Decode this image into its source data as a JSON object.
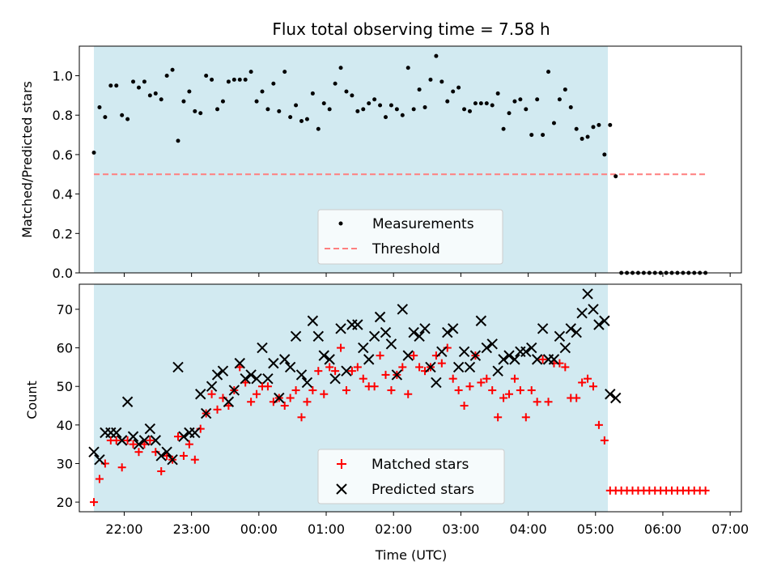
{
  "colors": {
    "span": "#add8e6",
    "measurement": "#000000",
    "threshold": "#ff7f7f",
    "matched": "#ff0000",
    "predicted": "#000000"
  },
  "chart_data": [
    {
      "type": "scatter",
      "title": "Flux total observing time = 7.58 h",
      "xlabel": "",
      "ylabel": "Matched/Predicted stars",
      "xlim": [
        "21:20",
        "07:10"
      ],
      "ylim": [
        0,
        1.15
      ],
      "yticks": [
        "0.0",
        "0.2",
        "0.4",
        "0.6",
        "0.8",
        "1.0"
      ],
      "observing_span": [
        "21:33",
        "05:11"
      ],
      "legend_position": "lower center",
      "threshold": {
        "name": "Threshold",
        "value": 0.5,
        "x": [
          "21:33",
          "06:40"
        ]
      },
      "series": [
        {
          "name": "Measurements",
          "x": [
            "21:33",
            "21:38",
            "21:43",
            "21:48",
            "21:53",
            "21:58",
            "22:03",
            "22:08",
            "22:13",
            "22:18",
            "22:23",
            "22:28",
            "22:33",
            "22:38",
            "22:43",
            "22:48",
            "22:53",
            "22:58",
            "23:03",
            "23:08",
            "23:13",
            "23:18",
            "23:23",
            "23:28",
            "23:33",
            "23:38",
            "23:43",
            "23:48",
            "23:53",
            "23:58",
            "00:03",
            "00:08",
            "00:13",
            "00:18",
            "00:23",
            "00:28",
            "00:33",
            "00:38",
            "00:43",
            "00:48",
            "00:53",
            "00:58",
            "01:03",
            "01:08",
            "01:13",
            "01:18",
            "01:23",
            "01:28",
            "01:33",
            "01:38",
            "01:43",
            "01:48",
            "01:53",
            "01:58",
            "02:03",
            "02:08",
            "02:13",
            "02:18",
            "02:23",
            "02:28",
            "02:33",
            "02:38",
            "02:43",
            "02:48",
            "02:53",
            "02:58",
            "03:03",
            "03:08",
            "03:13",
            "03:18",
            "03:23",
            "03:28",
            "03:33",
            "03:38",
            "03:43",
            "03:48",
            "03:53",
            "03:58",
            "04:03",
            "04:08",
            "04:13",
            "04:18",
            "04:23",
            "04:28",
            "04:33",
            "04:38",
            "04:43",
            "04:48",
            "04:53",
            "04:58",
            "05:03",
            "05:08",
            "05:13",
            "05:18",
            "05:23",
            "05:28",
            "05:33",
            "05:38",
            "05:43",
            "05:48",
            "05:53",
            "05:58",
            "06:03",
            "06:08",
            "06:13",
            "06:18",
            "06:23",
            "06:28",
            "06:33",
            "06:38"
          ],
          "y": [
            0.61,
            0.84,
            0.79,
            0.95,
            0.95,
            0.8,
            0.78,
            0.97,
            0.94,
            0.97,
            0.9,
            0.91,
            0.88,
            1.0,
            1.03,
            0.67,
            0.87,
            0.92,
            0.82,
            0.81,
            1.0,
            0.98,
            0.83,
            0.87,
            0.97,
            0.98,
            0.98,
            0.98,
            1.02,
            0.87,
            0.92,
            0.83,
            0.96,
            0.82,
            1.02,
            0.79,
            0.85,
            0.77,
            0.78,
            0.91,
            0.73,
            0.86,
            0.83,
            0.96,
            1.04,
            0.92,
            0.9,
            0.82,
            0.83,
            0.86,
            0.88,
            0.85,
            0.79,
            0.85,
            0.83,
            0.8,
            1.04,
            0.83,
            0.93,
            0.84,
            0.98,
            1.1,
            0.97,
            0.87,
            0.92,
            0.94,
            0.83,
            0.82,
            0.86,
            0.86,
            0.86,
            0.85,
            0.91,
            0.73,
            0.81,
            0.87,
            0.88,
            0.83,
            0.7,
            0.88,
            0.7,
            1.02,
            0.76,
            0.88,
            0.93,
            0.84,
            0.73,
            0.68,
            0.69,
            0.74,
            0.75,
            0.6,
            0.75,
            0.49,
            0,
            0,
            0,
            0,
            0,
            0,
            0,
            0,
            0,
            0,
            0,
            0,
            0,
            0,
            0,
            0
          ]
        }
      ]
    },
    {
      "type": "scatter",
      "title": "",
      "xlabel": "Time (UTC)",
      "ylabel": "Count",
      "xlim": [
        "21:20",
        "07:10"
      ],
      "ylim": [
        17.5,
        76.5
      ],
      "yticks": [
        "20",
        "30",
        "40",
        "50",
        "60",
        "70"
      ],
      "xticks": [
        "22:00",
        "23:00",
        "00:00",
        "01:00",
        "02:00",
        "03:00",
        "04:00",
        "05:00",
        "06:00",
        "07:00"
      ],
      "observing_span": [
        "21:33",
        "05:11"
      ],
      "legend_position": "lower center",
      "series": [
        {
          "name": "Matched stars",
          "marker": "plus",
          "x": [
            "21:33",
            "21:38",
            "21:43",
            "21:48",
            "21:53",
            "21:58",
            "22:03",
            "22:08",
            "22:13",
            "22:18",
            "22:23",
            "22:28",
            "22:33",
            "22:38",
            "22:43",
            "22:48",
            "22:53",
            "22:58",
            "23:03",
            "23:08",
            "23:13",
            "23:18",
            "23:23",
            "23:28",
            "23:33",
            "23:38",
            "23:43",
            "23:48",
            "23:53",
            "23:58",
            "00:03",
            "00:08",
            "00:13",
            "00:18",
            "00:23",
            "00:28",
            "00:33",
            "00:38",
            "00:43",
            "00:48",
            "00:53",
            "00:58",
            "01:03",
            "01:08",
            "01:13",
            "01:18",
            "01:23",
            "01:28",
            "01:33",
            "01:38",
            "01:43",
            "01:48",
            "01:53",
            "01:58",
            "02:03",
            "02:08",
            "02:13",
            "02:18",
            "02:23",
            "02:28",
            "02:33",
            "02:38",
            "02:43",
            "02:48",
            "02:53",
            "02:58",
            "03:03",
            "03:08",
            "03:13",
            "03:18",
            "03:23",
            "03:28",
            "03:33",
            "03:38",
            "03:43",
            "03:48",
            "03:53",
            "03:58",
            "04:03",
            "04:08",
            "04:13",
            "04:18",
            "04:23",
            "04:28",
            "04:33",
            "04:38",
            "04:43",
            "04:48",
            "04:53",
            "04:58",
            "05:03",
            "05:08",
            "05:13",
            "05:18",
            "05:23",
            "05:28",
            "05:33",
            "05:38",
            "05:43",
            "05:48",
            "05:53",
            "05:58",
            "06:03",
            "06:08",
            "06:13",
            "06:18",
            "06:23",
            "06:28",
            "06:33",
            "06:38"
          ],
          "y": [
            20,
            26,
            30,
            36,
            36,
            29,
            36,
            35,
            33,
            35,
            36,
            33,
            28,
            32,
            31,
            37,
            32,
            35,
            31,
            39,
            43,
            48,
            44,
            47,
            45,
            49,
            55,
            51,
            46,
            48,
            50,
            50,
            46,
            47,
            45,
            47,
            49,
            42,
            46,
            49,
            54,
            48,
            55,
            54,
            60,
            49,
            54,
            55,
            52,
            50,
            50,
            58,
            53,
            49,
            53,
            55,
            48,
            58,
            55,
            54,
            55,
            58,
            56,
            60,
            52,
            49,
            45,
            50,
            58,
            51,
            52,
            49,
            42,
            47,
            48,
            52,
            49,
            42,
            49,
            46,
            57,
            46,
            56,
            56,
            55,
            47,
            47,
            51,
            52,
            50,
            40,
            36,
            23,
            23,
            23,
            23,
            23,
            23,
            23,
            23,
            23,
            23,
            23,
            23,
            23,
            23,
            23,
            23,
            23,
            23
          ]
        },
        {
          "name": "Predicted stars",
          "marker": "x",
          "x": [
            "21:33",
            "21:38",
            "21:43",
            "21:48",
            "21:53",
            "21:58",
            "22:03",
            "22:08",
            "22:13",
            "22:18",
            "22:23",
            "22:28",
            "22:33",
            "22:38",
            "22:43",
            "22:48",
            "22:53",
            "22:58",
            "23:03",
            "23:08",
            "23:13",
            "23:18",
            "23:23",
            "23:28",
            "23:33",
            "23:38",
            "23:43",
            "23:48",
            "23:53",
            "23:58",
            "00:03",
            "00:08",
            "00:13",
            "00:18",
            "00:23",
            "00:28",
            "00:33",
            "00:38",
            "00:43",
            "00:48",
            "00:53",
            "00:58",
            "01:03",
            "01:08",
            "01:13",
            "01:18",
            "01:23",
            "01:28",
            "01:33",
            "01:38",
            "01:43",
            "01:48",
            "01:53",
            "01:58",
            "02:03",
            "02:08",
            "02:13",
            "02:18",
            "02:23",
            "02:28",
            "02:33",
            "02:38",
            "02:43",
            "02:48",
            "02:53",
            "02:58",
            "03:03",
            "03:08",
            "03:13",
            "03:18",
            "03:23",
            "03:28",
            "03:33",
            "03:38",
            "03:43",
            "03:48",
            "03:53",
            "03:58",
            "04:03",
            "04:08",
            "04:13",
            "04:18",
            "04:23",
            "04:28",
            "04:33",
            "04:38",
            "04:43",
            "04:48",
            "04:53",
            "04:58",
            "05:03",
            "05:08",
            "05:13",
            "05:18"
          ],
          "y": [
            33,
            31,
            38,
            38,
            38,
            36,
            46,
            37,
            35,
            36,
            39,
            36,
            32,
            33,
            31,
            55,
            37,
            38,
            38,
            48,
            43,
            50,
            53,
            54,
            46,
            49,
            56,
            52,
            53,
            52,
            60,
            52,
            56,
            47,
            57,
            55,
            63,
            53,
            51,
            67,
            63,
            58,
            57,
            52,
            65,
            54,
            66,
            66,
            60,
            57,
            63,
            68,
            64,
            61,
            53,
            70,
            58,
            64,
            63,
            65,
            55,
            51,
            59,
            64,
            65,
            55,
            59,
            55,
            58,
            67,
            60,
            61,
            54,
            57,
            58,
            57,
            59,
            59,
            60,
            57,
            65,
            57,
            57,
            63,
            60,
            65,
            64,
            69,
            74,
            70,
            66,
            67,
            48,
            47
          ]
        }
      ]
    }
  ]
}
